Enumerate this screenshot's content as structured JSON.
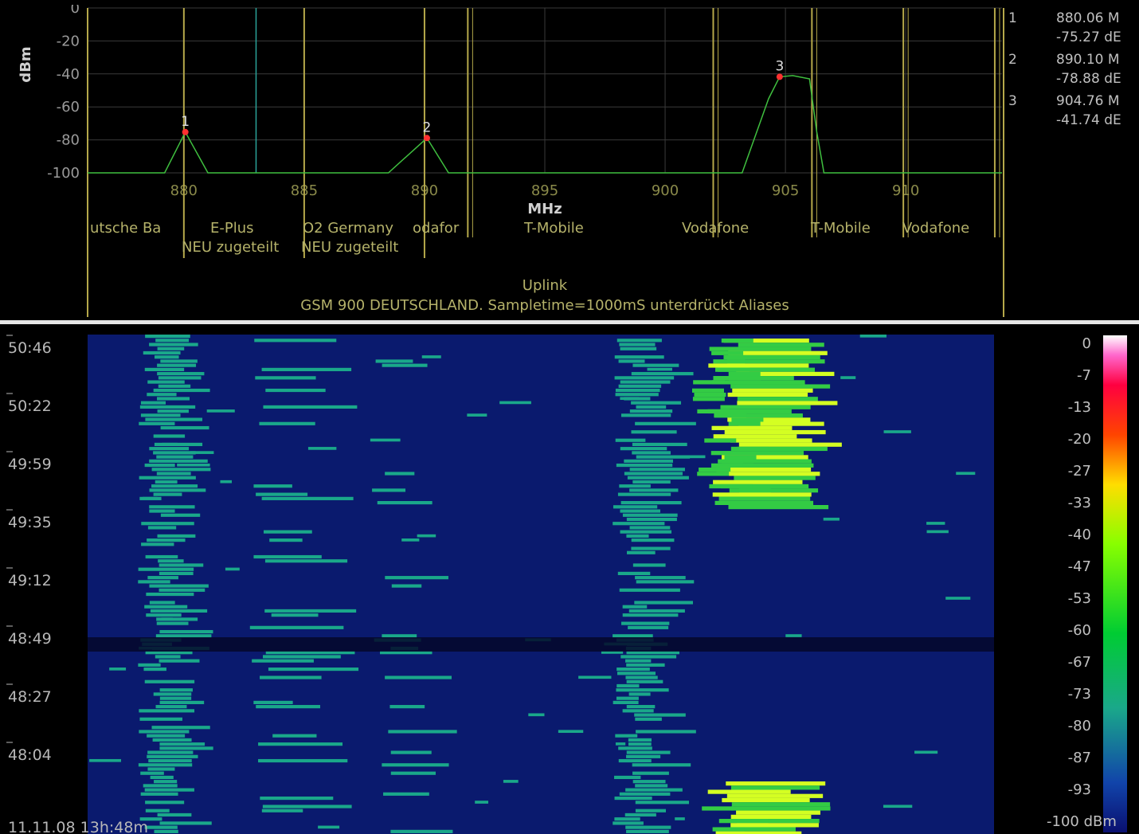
{
  "spectrum": {
    "y_axis_label": "dBm",
    "x_axis_label": "MHz",
    "y_ticks": [
      "0",
      "-20",
      "-40",
      "-60",
      "-80",
      "-100"
    ],
    "x_ticks": [
      "880",
      "885",
      "890",
      "895",
      "900",
      "905",
      "910"
    ],
    "band_labels": [
      {
        "text": "utsche Ba",
        "row": 1
      },
      {
        "text": "E-Plus",
        "row": 1
      },
      {
        "text": "O2 Germany",
        "row": 1
      },
      {
        "text": "odafor",
        "row": 1
      },
      {
        "text": "T-Mobile",
        "row": 1
      },
      {
        "text": "Vodafone",
        "row": 1
      },
      {
        "text": "T-Mobile",
        "row": 1
      },
      {
        "text": "Vodafone",
        "row": 1
      },
      {
        "text": "NEU zugeteilt",
        "row": 2
      },
      {
        "text": "NEU zugeteilt",
        "row": 2
      }
    ],
    "footer_line1": "Uplink",
    "footer_line2": "GSM 900 DEUTSCHLAND. Sampletime=1000mS unterdrückt Aliases",
    "markers": [
      {
        "id": "1",
        "freq_mhz": 880.06,
        "level_dbm": -75.27,
        "freq_text": "880.06 M",
        "level_text": "-75.27 dE"
      },
      {
        "id": "2",
        "freq_mhz": 890.1,
        "level_dbm": -78.88,
        "freq_text": "890.10 M",
        "level_text": "-78.88 dE"
      },
      {
        "id": "3",
        "freq_mhz": 904.76,
        "level_dbm": -41.74,
        "freq_text": "904.76 M",
        "level_text": "-41.74 dE"
      }
    ],
    "colors": {
      "trace": "#3fbf3f",
      "grid": "#3a3a3a",
      "band_line": "#b5a84a",
      "marker": "#ff3030"
    }
  },
  "waterfall": {
    "time_labels": [
      "50:46",
      "50:22",
      "49:59",
      "49:35",
      "49:12",
      "48:49",
      "48:27",
      "48:04"
    ],
    "start_stamp": "11.11.08 13h:48m",
    "scale_labels": [
      "0",
      "-7",
      "-13",
      "-20",
      "-27",
      "-33",
      "-40",
      "-47",
      "-53",
      "-60",
      "-67",
      "-73",
      "-80",
      "-87",
      "-93",
      "-100 dBm"
    ],
    "colors": {
      "background": "#0a1a6e",
      "low": "#1aa88a",
      "mid": "#33cc44",
      "high": "#d4ff22"
    }
  },
  "chart_data": {
    "type": "line",
    "title": "GSM 900 DEUTSCHLAND. Sampletime=1000mS unterdrückt Aliases",
    "xlabel": "MHz",
    "ylabel": "dBm",
    "xlim": [
      876,
      914
    ],
    "ylim": [
      -100,
      0
    ],
    "grid": true,
    "x": [
      876,
      879.2,
      880.06,
      881,
      883,
      885,
      888.5,
      890.1,
      891,
      894,
      898,
      902,
      903.2,
      904.3,
      904.76,
      905.3,
      906.0,
      906.3,
      906.6,
      910,
      914
    ],
    "series": [
      {
        "values": [
          -100,
          -100,
          -75.27,
          -100,
          -100,
          -100,
          -100,
          -78.88,
          -100,
          -100,
          -100,
          -100,
          -100,
          -55,
          -41.74,
          -41,
          -43,
          -75,
          -100,
          -100,
          -100
        ]
      }
    ]
  }
}
